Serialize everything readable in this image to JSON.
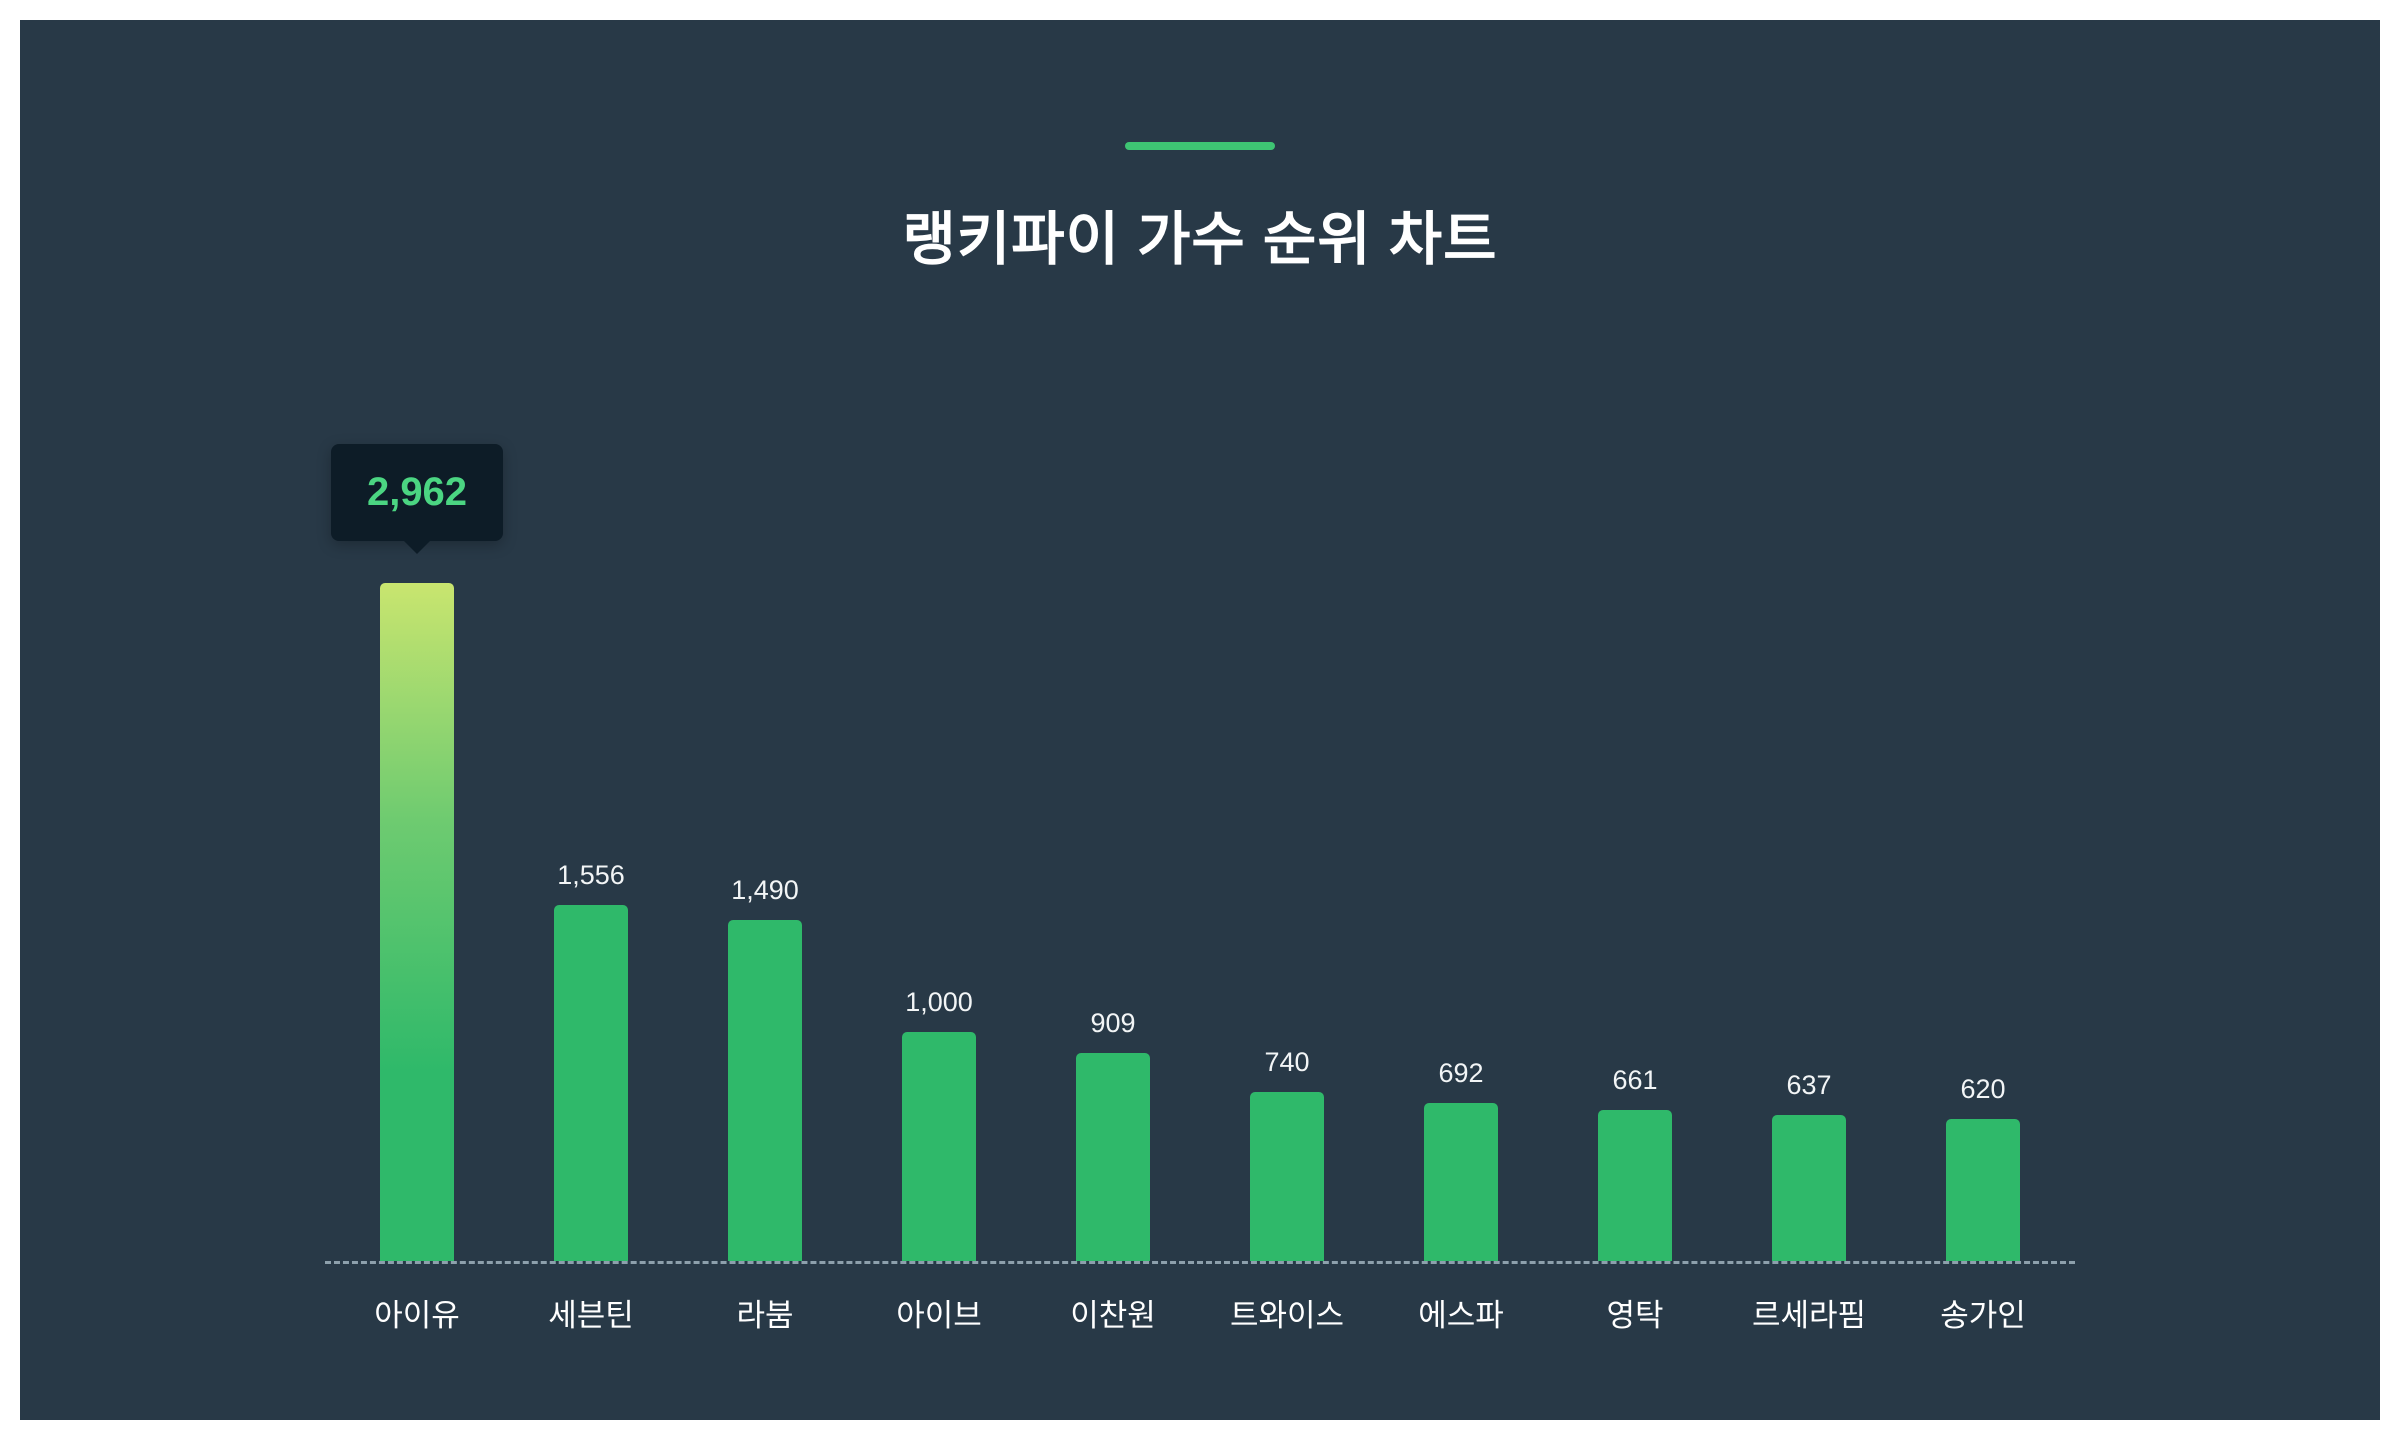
{
  "page": {
    "outer_background": "#ffffff",
    "inner_background": "#283947"
  },
  "header": {
    "title": "랭키파이 가수 순위 차트",
    "accent_color": "#3ec473"
  },
  "tooltip": {
    "value": "2,962",
    "text_color": "#4bd582",
    "background": "#0d1c27"
  },
  "chart_data": {
    "type": "bar",
    "title": "랭키파이 가수 순위 차트",
    "categories": [
      "아이유",
      "세븐틴",
      "라붐",
      "아이브",
      "이찬원",
      "트와이스",
      "에스파",
      "영탁",
      "르세라핌",
      "송가인"
    ],
    "values": [
      2962,
      1556,
      1490,
      1000,
      909,
      740,
      692,
      661,
      637,
      620
    ],
    "value_labels": [
      "2,962",
      "1,556",
      "1,490",
      "1,000",
      "909",
      "740",
      "692",
      "661",
      "637",
      "620"
    ],
    "highlight_index": 0,
    "bar_color": "#2fb96a",
    "highlight_gradient": [
      "#c9e56f",
      "#2fb96a"
    ],
    "value_label_color": "#f2f5f6",
    "category_label_color": "#ffffff",
    "baseline_style": "dashed",
    "baseline_color": "#8da0ac",
    "xlabel": "",
    "ylabel": "",
    "ylim": [
      0,
      2962
    ],
    "grid": false,
    "legend": false
  }
}
